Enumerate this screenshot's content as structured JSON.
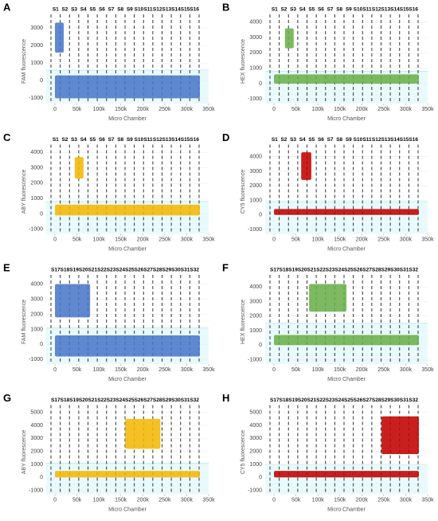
{
  "chart_data": [
    {
      "type": "scatter",
      "panel": "A",
      "ylabel": "FAM fluorescence",
      "xlabel": "Micro Chamber",
      "chambers": [
        "S1",
        "S2",
        "S3",
        "S4",
        "S5",
        "S6",
        "S7",
        "S8",
        "S9",
        "S10",
        "S11",
        "S12",
        "S13",
        "S14",
        "S15",
        "S16"
      ],
      "color": "#4a78c8",
      "xlim": [
        -20000,
        350000
      ],
      "xticks": [
        0,
        {
          "value": 50000,
          "label": "50k"
        },
        {
          "value": 100000,
          "label": "100k"
        },
        {
          "value": 150000,
          "label": "150k"
        },
        {
          "value": 200000,
          "label": "200k"
        },
        {
          "value": 250000,
          "label": "250k"
        },
        {
          "value": 300000,
          "label": "300k"
        },
        {
          "value": 350000,
          "label": "350k"
        }
      ],
      "ylim": [
        -1300,
        3500
      ],
      "yticks": [
        -1000,
        0,
        1000,
        2000,
        3000
      ],
      "threshold": 600,
      "clusters": [
        {
          "x": [
            0,
            20000
          ],
          "y": [
            1600,
            3300
          ]
        },
        {
          "x": [
            0,
            330000
          ],
          "y": [
            -1000,
            300
          ]
        }
      ]
    },
    {
      "type": "scatter",
      "panel": "B",
      "ylabel": "HEX fluorescence",
      "xlabel": "Micro Chamber",
      "chambers": [
        "S1",
        "S2",
        "S3",
        "S4",
        "S5",
        "S6",
        "S7",
        "S8",
        "S9",
        "S10",
        "S11",
        "S12",
        "S13",
        "S14",
        "S15",
        "S16"
      ],
      "color": "#6aaf4a",
      "xlim": [
        -20000,
        350000
      ],
      "xticks": [
        0,
        {
          "value": 50000,
          "label": "50k"
        },
        {
          "value": 100000,
          "label": "100k"
        },
        {
          "value": 150000,
          "label": "150k"
        },
        {
          "value": 200000,
          "label": "200k"
        },
        {
          "value": 250000,
          "label": "250k"
        },
        {
          "value": 300000,
          "label": "300k"
        },
        {
          "value": 350000,
          "label": "350k"
        }
      ],
      "ylim": [
        -1300,
        4200
      ],
      "yticks": [
        -1000,
        0,
        1000,
        2000,
        3000,
        4000
      ],
      "threshold": 800,
      "clusters": [
        {
          "x": [
            25000,
            45000
          ],
          "y": [
            2300,
            3600
          ]
        },
        {
          "x": [
            0,
            330000
          ],
          "y": [
            0,
            600
          ]
        }
      ]
    },
    {
      "type": "scatter",
      "panel": "C",
      "ylabel": "ABY fluorescence",
      "xlabel": "Micro Chamber",
      "chambers": [
        "S1",
        "S2",
        "S3",
        "S4",
        "S5",
        "S6",
        "S7",
        "S8",
        "S9",
        "S10",
        "S11",
        "S12",
        "S13",
        "S14",
        "S15",
        "S16"
      ],
      "color": "#f2b705",
      "xlim": [
        -20000,
        350000
      ],
      "xticks": [
        0,
        {
          "value": 50000,
          "label": "50k"
        },
        {
          "value": 100000,
          "label": "100k"
        },
        {
          "value": 150000,
          "label": "150k"
        },
        {
          "value": 200000,
          "label": "200k"
        },
        {
          "value": 250000,
          "label": "250k"
        },
        {
          "value": 300000,
          "label": "300k"
        },
        {
          "value": 350000,
          "label": "350k"
        }
      ],
      "ylim": [
        -1300,
        4200
      ],
      "yticks": [
        -1000,
        0,
        1000,
        2000,
        3000,
        4000
      ],
      "threshold": 800,
      "clusters": [
        {
          "x": [
            45000,
            65000
          ],
          "y": [
            2300,
            3700
          ]
        },
        {
          "x": [
            0,
            330000
          ],
          "y": [
            -100,
            600
          ]
        }
      ]
    },
    {
      "type": "scatter",
      "panel": "D",
      "ylabel": "CY5 fluorescence",
      "xlabel": "Micro Chamber",
      "chambers": [
        "S1",
        "S2",
        "S3",
        "S4",
        "S5",
        "S6",
        "S7",
        "S8",
        "S9",
        "S10",
        "S11",
        "S12",
        "S13",
        "S14",
        "S15",
        "S16"
      ],
      "color": "#c00000",
      "xlim": [
        -20000,
        350000
      ],
      "xticks": [
        0,
        {
          "value": 50000,
          "label": "50k"
        },
        {
          "value": 100000,
          "label": "100k"
        },
        {
          "value": 150000,
          "label": "150k"
        },
        {
          "value": 200000,
          "label": "200k"
        },
        {
          "value": 250000,
          "label": "250k"
        },
        {
          "value": 300000,
          "label": "300k"
        },
        {
          "value": 350000,
          "label": "350k"
        }
      ],
      "ylim": [
        -1300,
        4500
      ],
      "yticks": [
        -1000,
        0,
        1000,
        2000,
        3000,
        4000
      ],
      "threshold": 900,
      "clusters": [
        {
          "x": [
            62000,
            85000
          ],
          "y": [
            2400,
            4300
          ]
        },
        {
          "x": [
            0,
            330000
          ],
          "y": [
            0,
            400
          ]
        }
      ]
    },
    {
      "type": "scatter",
      "panel": "E",
      "ylabel": "FAM fluorescence",
      "xlabel": "Micro Chamber",
      "chambers": [
        "S17",
        "S18",
        "S19",
        "S20",
        "S21",
        "S22",
        "S23",
        "S24",
        "S25",
        "S26",
        "S27",
        "S28",
        "S29",
        "S30",
        "S31",
        "S32"
      ],
      "color": "#4a78c8",
      "xlim": [
        -20000,
        350000
      ],
      "xticks": [
        0,
        {
          "value": 50000,
          "label": "50k"
        },
        {
          "value": 100000,
          "label": "100k"
        },
        {
          "value": 150000,
          "label": "150k"
        },
        {
          "value": 200000,
          "label": "200k"
        },
        {
          "value": 250000,
          "label": "250k"
        },
        {
          "value": 300000,
          "label": "300k"
        },
        {
          "value": 350000,
          "label": "350k"
        }
      ],
      "ylim": [
        -1300,
        4300
      ],
      "yticks": [
        -1000,
        0,
        1000,
        2000,
        3000,
        4000
      ],
      "threshold": 1100,
      "clusters": [
        {
          "x": [
            0,
            80000
          ],
          "y": [
            1800,
            4000
          ]
        },
        {
          "x": [
            0,
            330000
          ],
          "y": [
            -800,
            600
          ]
        }
      ]
    },
    {
      "type": "scatter",
      "panel": "F",
      "ylabel": "HEX fluorescence",
      "xlabel": "Micro Chamber",
      "chambers": [
        "S17",
        "S18",
        "S19",
        "S20",
        "S21",
        "S22",
        "S23",
        "S24",
        "S25",
        "S26",
        "S27",
        "S28",
        "S29",
        "S30",
        "S31",
        "S32"
      ],
      "color": "#6aaf4a",
      "xlim": [
        -20000,
        350000
      ],
      "xticks": [
        0,
        {
          "value": 50000,
          "label": "50k"
        },
        {
          "value": 100000,
          "label": "100k"
        },
        {
          "value": 150000,
          "label": "150k"
        },
        {
          "value": 200000,
          "label": "200k"
        },
        {
          "value": 250000,
          "label": "250k"
        },
        {
          "value": 300000,
          "label": "300k"
        },
        {
          "value": 350000,
          "label": "350k"
        }
      ],
      "ylim": [
        -1300,
        4500
      ],
      "yticks": [
        -1000,
        0,
        1000,
        2000,
        3000,
        4000
      ],
      "threshold": 1500,
      "clusters": [
        {
          "x": [
            80000,
            165000
          ],
          "y": [
            2300,
            4200
          ]
        },
        {
          "x": [
            0,
            330000
          ],
          "y": [
            0,
            700
          ]
        }
      ]
    },
    {
      "type": "scatter",
      "panel": "G",
      "ylabel": "ABY fluorescence",
      "xlabel": "Micro Chamber",
      "chambers": [
        "S17",
        "S18",
        "S19",
        "S20",
        "S21",
        "S22",
        "S23",
        "S24",
        "S25",
        "S26",
        "S27",
        "S28",
        "S29",
        "S30",
        "S31",
        "S32"
      ],
      "color": "#f2b705",
      "xlim": [
        -20000,
        350000
      ],
      "xticks": [
        0,
        {
          "value": 50000,
          "label": "50k"
        },
        {
          "value": 100000,
          "label": "100k"
        },
        {
          "value": 150000,
          "label": "150k"
        },
        {
          "value": 200000,
          "label": "200k"
        },
        {
          "value": 250000,
          "label": "250k"
        },
        {
          "value": 300000,
          "label": "300k"
        },
        {
          "value": 350000,
          "label": "350k"
        }
      ],
      "ylim": [
        -1300,
        5200
      ],
      "yticks": [
        -1000,
        0,
        1000,
        2000,
        3000,
        4000,
        5000
      ],
      "threshold": 1100,
      "clusters": [
        {
          "x": [
            160000,
            240000
          ],
          "y": [
            2200,
            4500
          ]
        },
        {
          "x": [
            0,
            330000
          ],
          "y": [
            0,
            500
          ]
        }
      ]
    },
    {
      "type": "scatter",
      "panel": "H",
      "ylabel": "CY5 fluorescence",
      "xlabel": "Micro Chamber",
      "chambers": [
        "S17",
        "S18",
        "S19",
        "S20",
        "S21",
        "S22",
        "S23",
        "S24",
        "S25",
        "S26",
        "S27",
        "S28",
        "S29",
        "S30",
        "S31",
        "S32"
      ],
      "color": "#c00000",
      "xlim": [
        -20000,
        350000
      ],
      "xticks": [
        0,
        {
          "value": 50000,
          "label": "50k"
        },
        {
          "value": 100000,
          "label": "100k"
        },
        {
          "value": 150000,
          "label": "150k"
        },
        {
          "value": 200000,
          "label": "200k"
        },
        {
          "value": 250000,
          "label": "250k"
        },
        {
          "value": 300000,
          "label": "300k"
        },
        {
          "value": 350000,
          "label": "350k"
        }
      ],
      "ylim": [
        -1300,
        5200
      ],
      "yticks": [
        -1000,
        0,
        1000,
        2000,
        3000,
        4000,
        5000
      ],
      "threshold": 1000,
      "clusters": [
        {
          "x": [
            245000,
            330000
          ],
          "y": [
            1800,
            4700
          ]
        },
        {
          "x": [
            0,
            330000
          ],
          "y": [
            0,
            500
          ]
        }
      ]
    }
  ]
}
